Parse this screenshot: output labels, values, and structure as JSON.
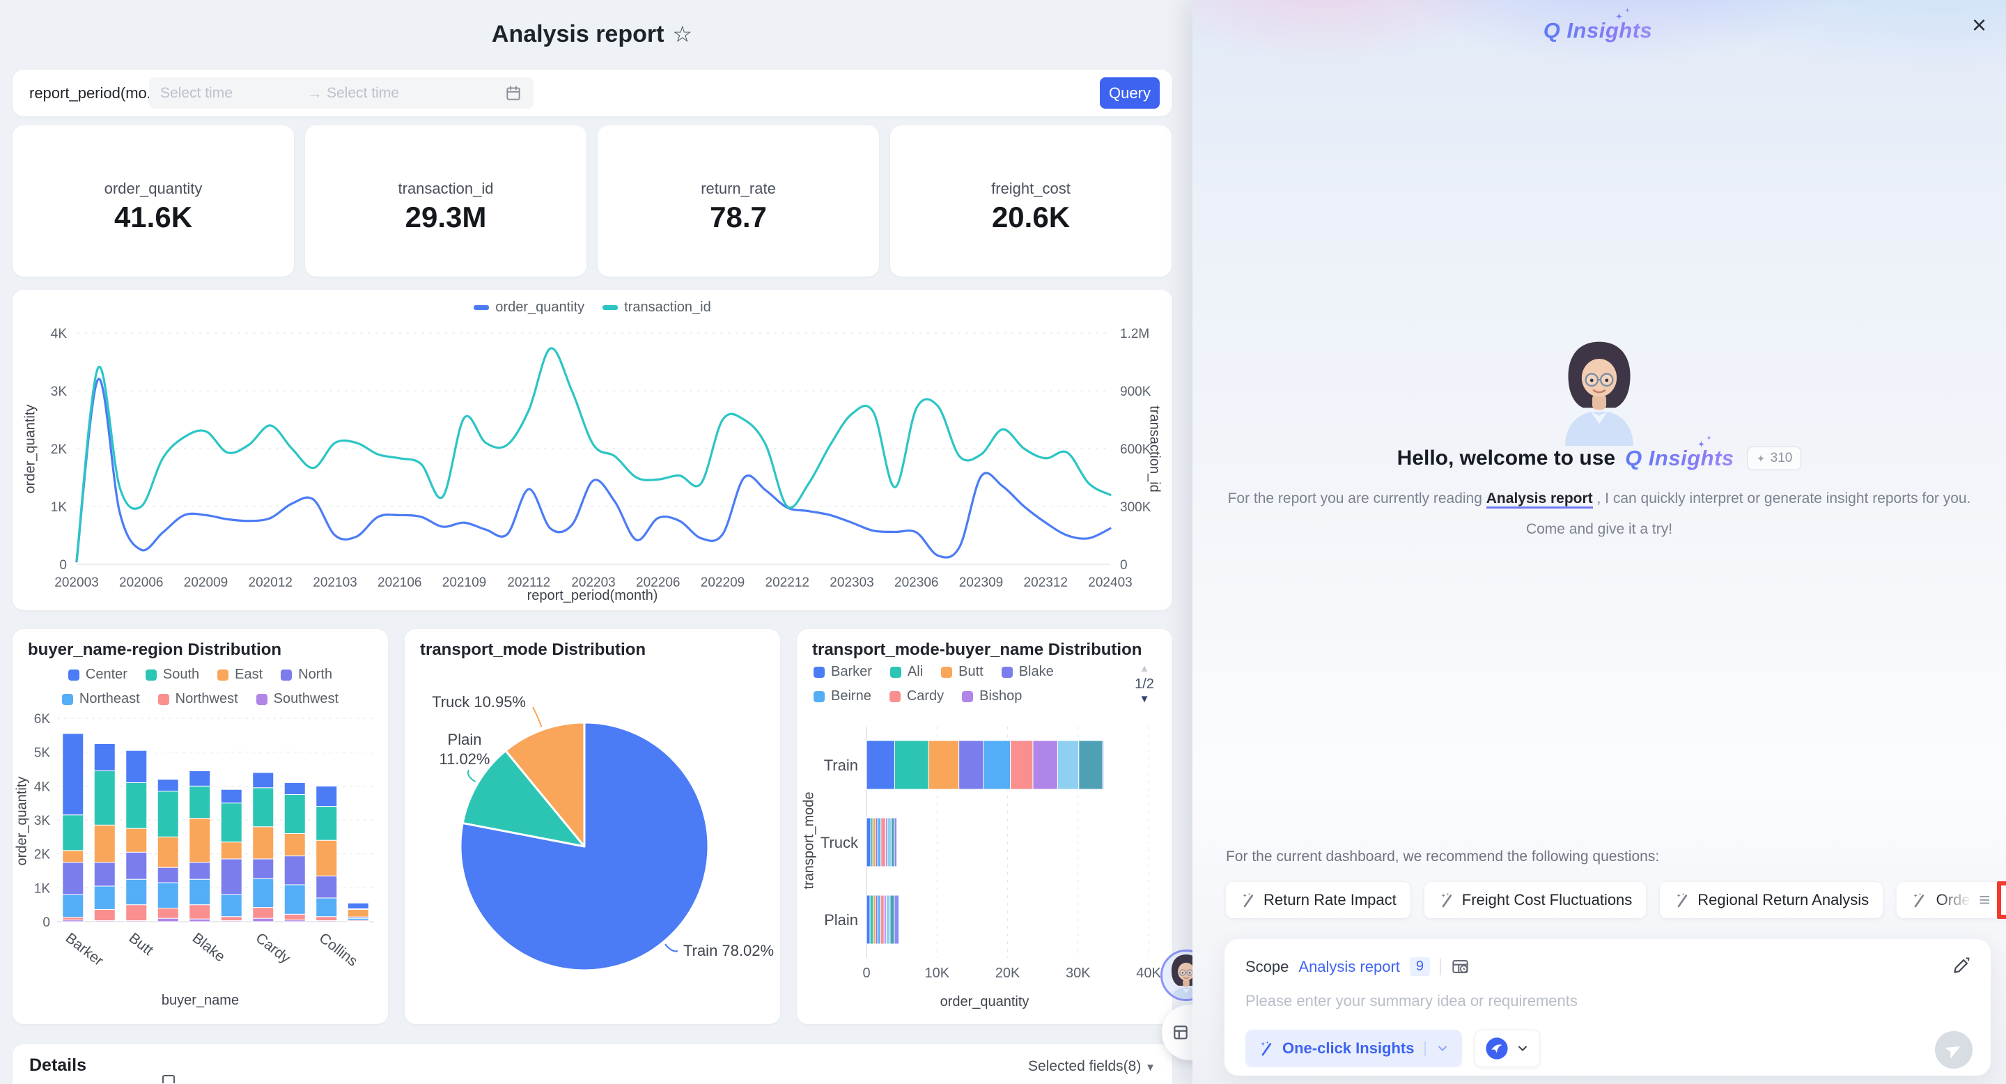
{
  "dashboard": {
    "title": "Analysis report",
    "filter": {
      "label": "report_period(mo...",
      "start_placeholder": "Select time",
      "end_placeholder": "Select time",
      "query_label": "Query"
    },
    "kpis": [
      {
        "label": "order_quantity",
        "value": "41.6K"
      },
      {
        "label": "transaction_id",
        "value": "29.3M"
      },
      {
        "label": "return_rate",
        "value": "78.7"
      },
      {
        "label": "freight_cost",
        "value": "20.6K"
      }
    ],
    "details": {
      "title": "Details",
      "fields_label": "Selected fields(8)"
    }
  },
  "chart_data": [
    {
      "type": "line",
      "xlabel": "report_period(month)",
      "x_ticks": [
        "202003",
        "202006",
        "202009",
        "202012",
        "202103",
        "202106",
        "202109",
        "202112",
        "202203",
        "202206",
        "202209",
        "202212",
        "202303",
        "202306",
        "202309",
        "202312",
        "202403"
      ],
      "left_axis": {
        "label": "order_quantity",
        "ticks": [
          "0",
          "1K",
          "2K",
          "3K",
          "4K"
        ],
        "max": 4000
      },
      "right_axis": {
        "label": "transaction_id",
        "ticks": [
          "0",
          "300K",
          "600K",
          "900K",
          "1.2M"
        ],
        "max": 1200000
      },
      "legend": [
        {
          "label": "order_quantity",
          "color": "#4b7cf5"
        },
        {
          "label": "transaction_id",
          "color": "#2cc5c5"
        }
      ],
      "series": [
        {
          "name": "order_quantity",
          "axis": "left",
          "color": "#4b7cf5",
          "values": [
            50,
            3200,
            900,
            250,
            550,
            850,
            850,
            780,
            750,
            800,
            1050,
            1120,
            500,
            480,
            820,
            850,
            820,
            650,
            720,
            600,
            520,
            1300,
            620,
            680,
            1450,
            1080,
            420,
            800,
            750,
            450,
            520,
            1500,
            1280,
            980,
            920,
            850,
            720,
            580,
            560,
            550,
            150,
            300,
            1520,
            1350,
            1000,
            720,
            500,
            450,
            620
          ]
        },
        {
          "name": "transaction_id",
          "axis": "right",
          "color": "#2cc5c5",
          "values": [
            20000,
            1020000,
            400000,
            300000,
            550000,
            660000,
            690000,
            580000,
            620000,
            720000,
            600000,
            500000,
            630000,
            630000,
            570000,
            550000,
            520000,
            350000,
            760000,
            630000,
            620000,
            800000,
            1120000,
            900000,
            620000,
            560000,
            450000,
            440000,
            460000,
            420000,
            750000,
            750000,
            620000,
            300000,
            420000,
            620000,
            780000,
            790000,
            400000,
            810000,
            820000,
            560000,
            570000,
            700000,
            600000,
            550000,
            580000,
            420000,
            360000
          ]
        }
      ]
    },
    {
      "type": "stacked_bar",
      "title": "buyer_name-region Distribution",
      "xlabel": "buyer_name",
      "ylabel": "order_quantity",
      "y_ticks": [
        "0",
        "1K",
        "2K",
        "3K",
        "4K",
        "5K",
        "6K"
      ],
      "y_max": 6000,
      "categories": [
        "Barker",
        "",
        "Butt",
        "",
        "Blake",
        "",
        "Cardy",
        "",
        "Collins",
        ""
      ],
      "legend": [
        {
          "label": "Center",
          "color": "#4b7cf5"
        },
        {
          "label": "South",
          "color": "#2cc5b4"
        },
        {
          "label": "East",
          "color": "#f9a65a"
        },
        {
          "label": "North",
          "color": "#7b7ded"
        },
        {
          "label": "Northeast",
          "color": "#54aef7"
        },
        {
          "label": "Northwest",
          "color": "#fa8f8f"
        },
        {
          "label": "Southwest",
          "color": "#b085e8"
        }
      ],
      "series": [
        {
          "name": "Southwest",
          "color": "#b085e8",
          "values": [
            50,
            30,
            30,
            100,
            80,
            30,
            100,
            50,
            30,
            10
          ]
        },
        {
          "name": "Northwest",
          "color": "#fa8f8f",
          "values": [
            80,
            330,
            470,
            300,
            420,
            120,
            320,
            170,
            120,
            30
          ]
        },
        {
          "name": "Northeast",
          "color": "#54aef7",
          "values": [
            670,
            690,
            750,
            750,
            750,
            650,
            850,
            870,
            550,
            60
          ]
        },
        {
          "name": "North",
          "color": "#7b7ded",
          "values": [
            950,
            700,
            800,
            450,
            500,
            1050,
            580,
            850,
            650,
            40
          ]
        },
        {
          "name": "East",
          "color": "#f9a65a",
          "values": [
            350,
            1100,
            700,
            900,
            1300,
            500,
            950,
            660,
            1050,
            220
          ]
        },
        {
          "name": "South",
          "color": "#2cc5b4",
          "values": [
            1050,
            1600,
            1350,
            1350,
            950,
            1150,
            1150,
            1150,
            1000,
            20
          ]
        },
        {
          "name": "Center",
          "color": "#4b7cf5",
          "values": [
            2400,
            800,
            950,
            350,
            450,
            400,
            450,
            350,
            600,
            170
          ]
        }
      ]
    },
    {
      "type": "pie",
      "title": "transport_mode Distribution",
      "slices": [
        {
          "label": "Train",
          "value": 78.02,
          "display": "Train 78.02%",
          "color": "#4b7cf5"
        },
        {
          "label": "Plain",
          "value": 11.02,
          "display": "Plain 11.02%",
          "color": "#2cc5b4"
        },
        {
          "label": "Truck",
          "value": 10.95,
          "display": "Truck 10.95%",
          "color": "#f9a65a"
        }
      ]
    },
    {
      "type": "h_stacked_bar",
      "title": "transport_mode-buyer_name Distribution",
      "xlabel": "order_quantity",
      "ylabel": "transport_mode",
      "categories": [
        "Train",
        "Truck",
        "Plain"
      ],
      "x_ticks": [
        "0",
        "10K",
        "20K",
        "30K",
        "40K"
      ],
      "x_max": 40000,
      "pagination": "1/2",
      "legend": [
        {
          "label": "Barker",
          "color": "#4b7cf5"
        },
        {
          "label": "Ali",
          "color": "#2cc5b4"
        },
        {
          "label": "Butt",
          "color": "#f9a65a"
        },
        {
          "label": "Blake",
          "color": "#7b7ded"
        },
        {
          "label": "Beirne",
          "color": "#54aef7"
        },
        {
          "label": "Cardy",
          "color": "#fa8f8f"
        },
        {
          "label": "Bishop",
          "color": "#b085e8"
        }
      ],
      "series": [
        {
          "name": "Barker",
          "color": "#4b7cf5",
          "values": [
            4000,
            600,
            500
          ]
        },
        {
          "name": "Ali",
          "color": "#2cc5b4",
          "values": [
            4800,
            300,
            450
          ]
        },
        {
          "name": "Butt",
          "color": "#f9a65a",
          "values": [
            4300,
            400,
            350
          ]
        },
        {
          "name": "Blake",
          "color": "#7b7ded",
          "values": [
            3500,
            300,
            300
          ]
        },
        {
          "name": "Beirne",
          "color": "#54aef7",
          "values": [
            3800,
            450,
            400
          ]
        },
        {
          "name": "Cardy",
          "color": "#fa8f8f",
          "values": [
            3200,
            650,
            500
          ]
        },
        {
          "name": "Bishop",
          "color": "#b085e8",
          "values": [
            3500,
            250,
            300
          ]
        },
        {
          "name": "unlabeled-1",
          "color": "#8fd0f2",
          "values": [
            3000,
            550,
            550
          ]
        },
        {
          "name": "unlabeled-2",
          "color": "#4fa0b5",
          "values": [
            3400,
            450,
            600
          ]
        },
        {
          "name": "unlabeled-3",
          "color": "#8a8df0",
          "values": [
            150,
            350,
            650
          ]
        }
      ]
    }
  ],
  "insights_panel": {
    "title": "Q Insights",
    "welcome_prefix": "Hello, welcome to use",
    "credits": "310",
    "intro_prefix": "For the report you are currently reading",
    "intro_link": "Analysis report",
    "intro_suffix": ", I can quickly interpret or generate insight reports for you.",
    "intro_line2": "Come and give it a try!",
    "recommend_label": "For the current dashboard, we recommend the following questions:",
    "suggestions": [
      "Return Rate Impact",
      "Freight Cost Fluctuations",
      "Regional Return Analysis",
      "Orde"
    ],
    "scope_label": "Scope",
    "scope_value": "Analysis report",
    "scope_count": "9",
    "input_placeholder": "Please enter your summary idea or requirements",
    "one_click_label": "One-click Insights"
  }
}
